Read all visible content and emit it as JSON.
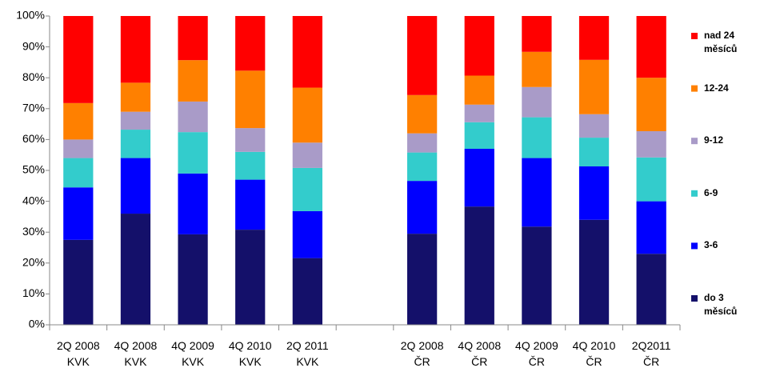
{
  "chart_data": {
    "type": "stacked_bar",
    "categories": [
      "2Q 2008\nKVK",
      "4Q 2008\nKVK",
      "4Q 2009\nKVK",
      "4Q 2010\nKVK",
      "2Q 2011\nKVK",
      null,
      "2Q 2008\nČR",
      "4Q 2008\nČR",
      "4Q 2009\nČR",
      "4Q 2010\nČR",
      "2Q2011\nČR"
    ],
    "series": [
      {
        "name": "do 3\nměsíců",
        "color": "#14106a",
        "values": [
          27.5,
          36,
          29.3,
          30.8,
          21.6,
          null,
          29.5,
          38.3,
          31.8,
          34,
          23
        ]
      },
      {
        "name": "3-6",
        "color": "#0000ff",
        "values": [
          17,
          18,
          19.7,
          16.2,
          15.2,
          null,
          17.1,
          18.7,
          22.2,
          17.3,
          17
        ]
      },
      {
        "name": "6-9",
        "color": "#33cccc",
        "values": [
          9.5,
          9.2,
          13.4,
          9,
          14,
          null,
          9.2,
          8.6,
          13.2,
          9.3,
          14.2
        ]
      },
      {
        "name": "9-12",
        "color": "#a99bc8",
        "values": [
          6,
          5.8,
          9.9,
          7.7,
          8.2,
          null,
          6.2,
          5.7,
          9.8,
          7.6,
          8.5
        ]
      },
      {
        "name": "12-24",
        "color": "#ff8000",
        "values": [
          11.8,
          9.4,
          13.4,
          18.6,
          17.8,
          null,
          12.4,
          9.4,
          11.4,
          17.6,
          17.3
        ]
      },
      {
        "name": "nad 24\nměsíců",
        "color": "#ff0000",
        "values": [
          28.2,
          21.6,
          14.3,
          17.7,
          23.2,
          null,
          25.6,
          19.3,
          11.6,
          14.2,
          20
        ]
      }
    ],
    "ylim": [
      0,
      100
    ],
    "yticks": [
      {
        "value": 0,
        "label": "0%"
      },
      {
        "value": 10,
        "label": "10%"
      },
      {
        "value": 20,
        "label": "20%"
      },
      {
        "value": 30,
        "label": "30%"
      },
      {
        "value": 40,
        "label": "40%"
      },
      {
        "value": 50,
        "label": "50%"
      },
      {
        "value": 60,
        "label": "60%"
      },
      {
        "value": 70,
        "label": "70%"
      },
      {
        "value": 80,
        "label": "80%"
      },
      {
        "value": 90,
        "label": "90%"
      },
      {
        "value": 100,
        "label": "100%"
      }
    ],
    "legend": "right"
  }
}
